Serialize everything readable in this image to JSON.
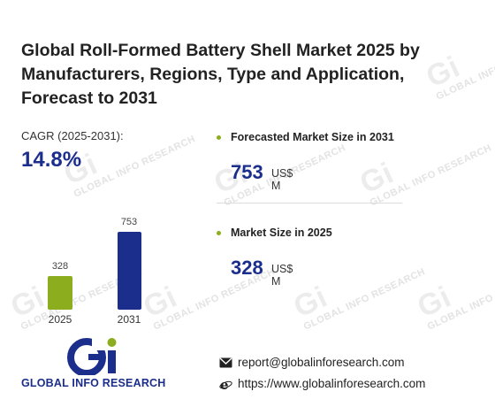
{
  "title": "Global Roll-Formed Battery Shell Market 2025 by Manufacturers, Regions, Type and Application, Forecast to 2031",
  "cagr": {
    "label": "CAGR (2025-2031):",
    "value": "14.8%"
  },
  "chart_data": {
    "type": "bar",
    "categories": [
      "2025",
      "2031"
    ],
    "values": [
      328,
      753
    ],
    "colors": [
      "#8cae1e",
      "#1b2e8c"
    ]
  },
  "stats": {
    "forecast": {
      "label": "Forecasted Market Size in 2031",
      "value": "753",
      "unit": "US$ M"
    },
    "current": {
      "label": "Market Size in 2025",
      "value": "328",
      "unit": "US$ M"
    }
  },
  "brand": {
    "name": "GLOBAL INFO RESEARCH",
    "watermark": "GLOBAL INFO RESEARCH",
    "mark": "Gi"
  },
  "contact": {
    "email": "report@globalinforesearch.com",
    "website": "https://www.globalinforesearch.com",
    "email_icon": "mail-icon",
    "web_icon": "browser-icon"
  },
  "colors": {
    "accent_blue": "#1b2e8c",
    "accent_green": "#8cae1e"
  }
}
